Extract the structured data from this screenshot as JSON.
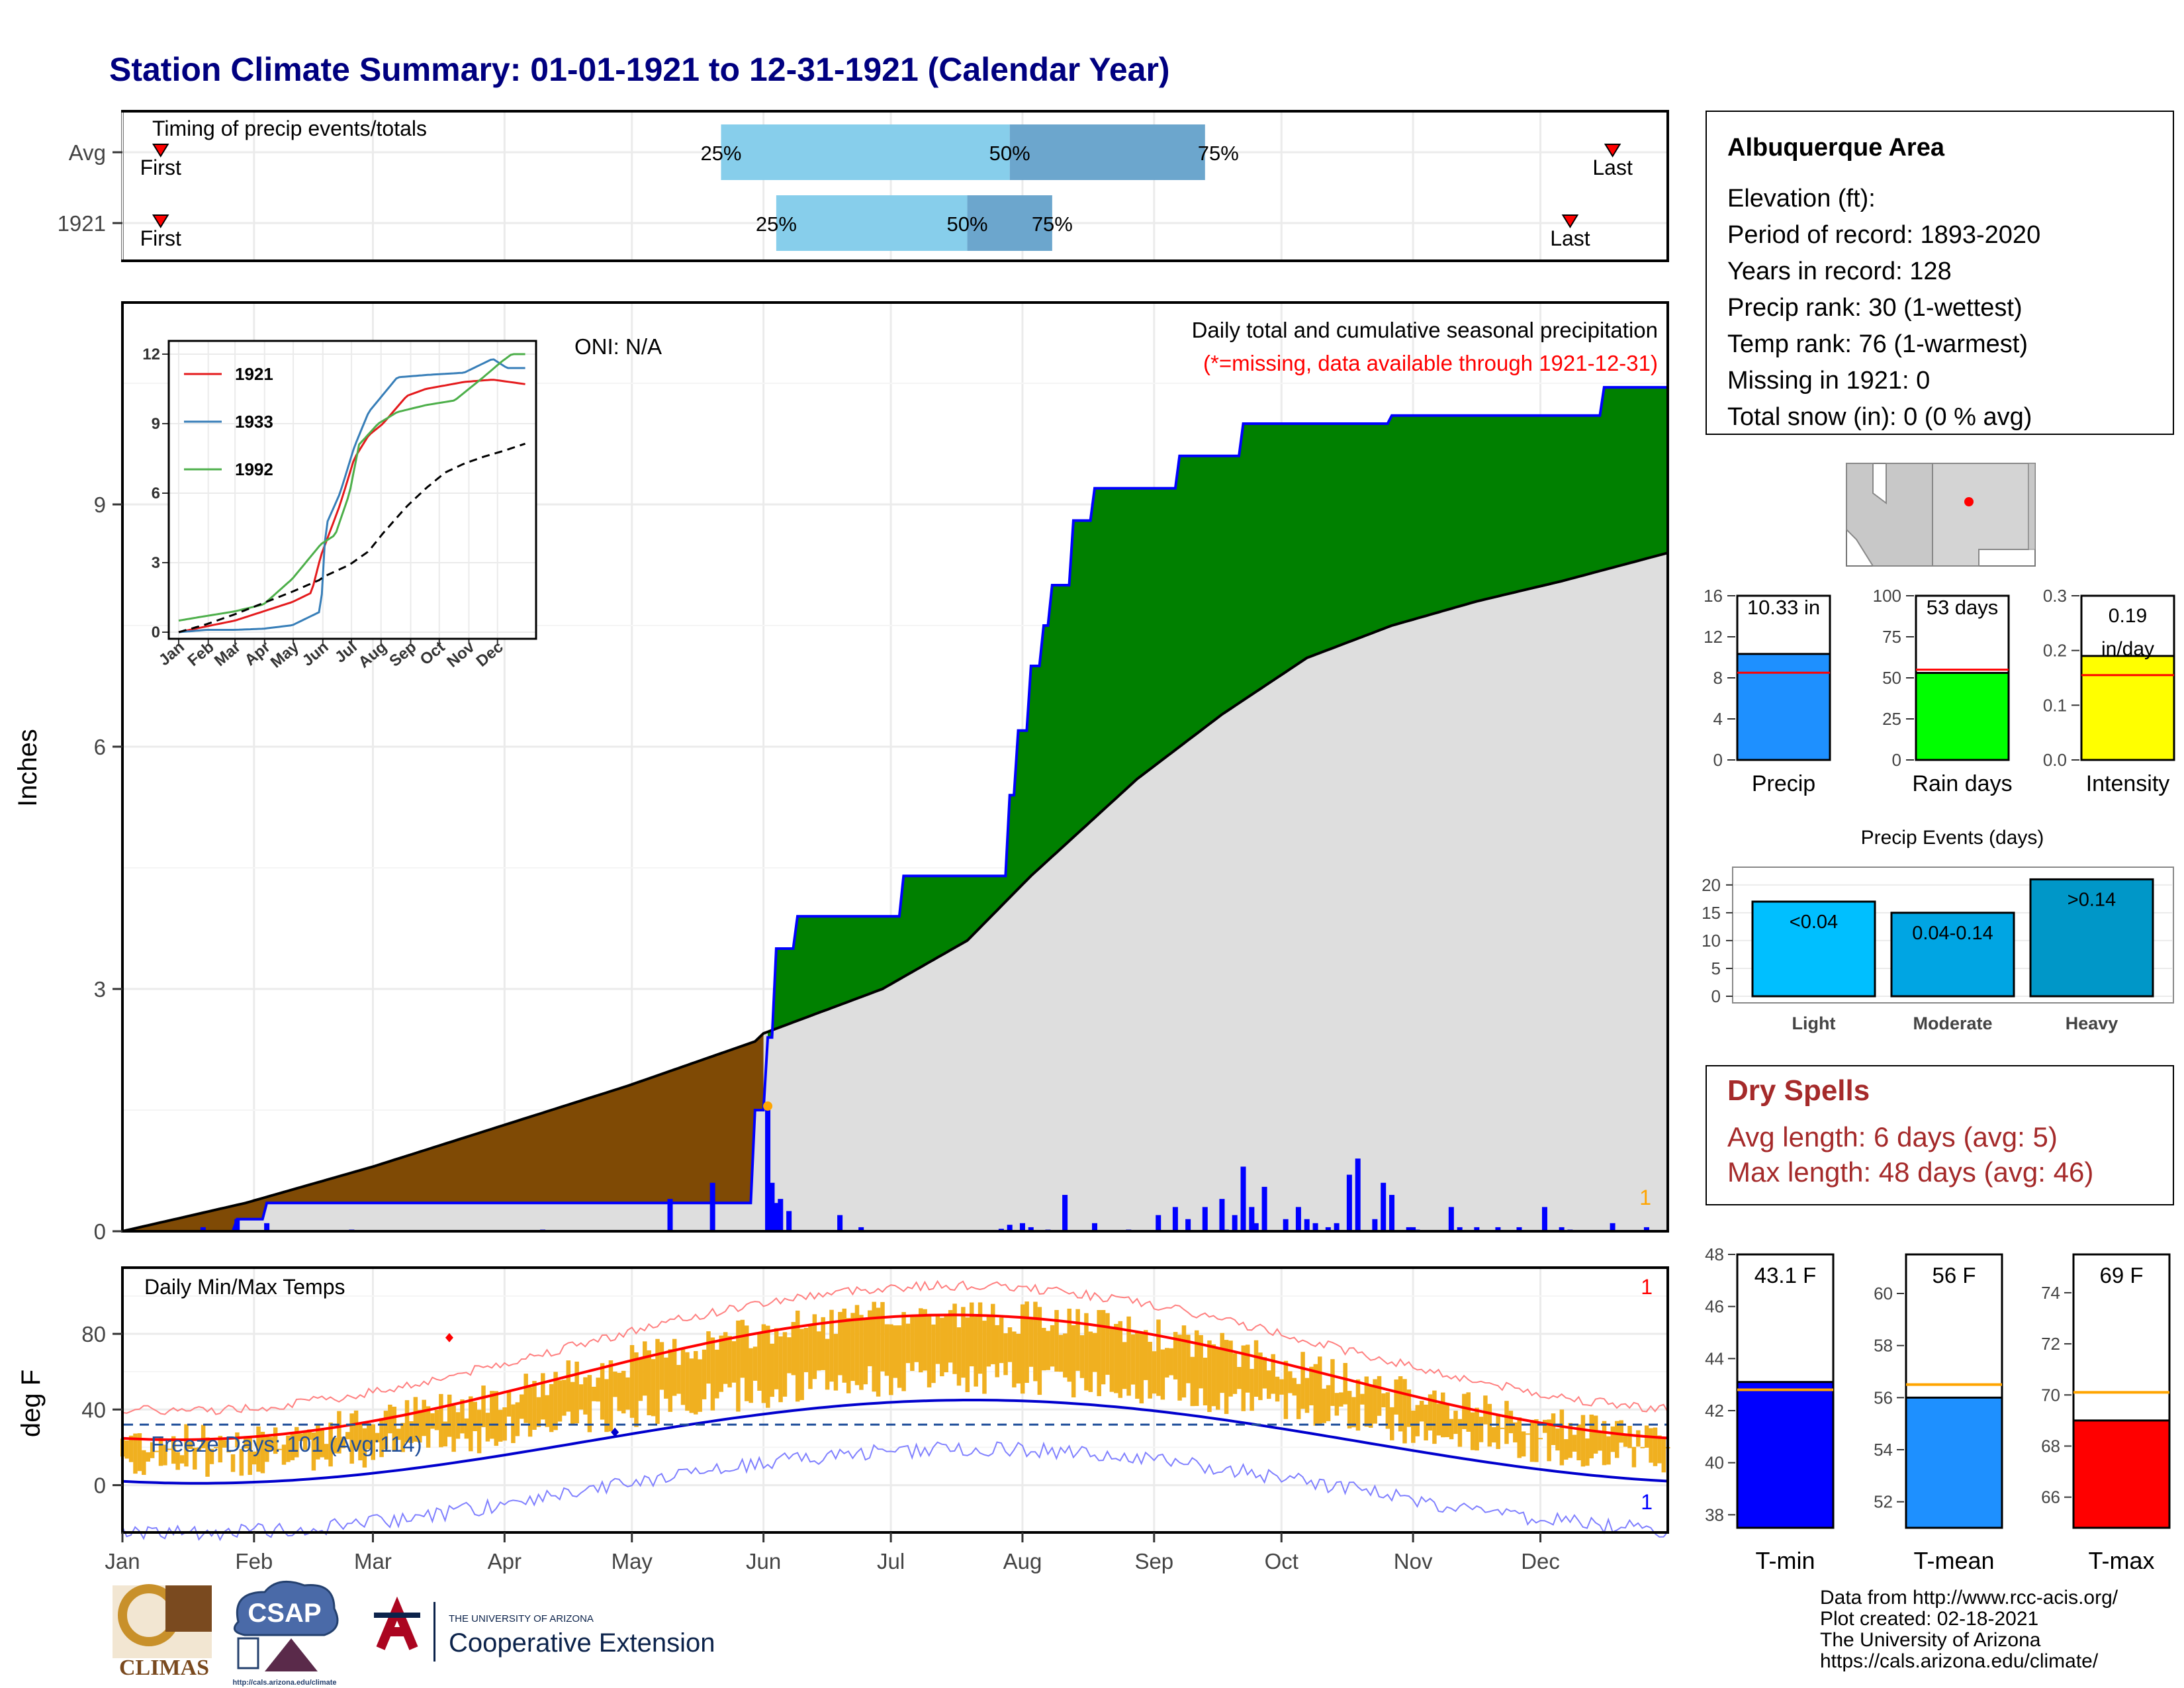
{
  "title": "Station Climate Summary: 01-01-1921 to 12-31-1921 (Calendar Year)",
  "months": [
    "Jan",
    "Feb",
    "Mar",
    "Apr",
    "May",
    "Jun",
    "Jul",
    "Aug",
    "Sep",
    "Oct",
    "Nov",
    "Dec"
  ],
  "timing_panel": {
    "label": "Timing of precip events/totals",
    "rows": [
      {
        "name": "Avg",
        "first_doy": 10,
        "last_doy": 352,
        "q25": 142,
        "q50": 210,
        "q75": 256,
        "first_label": "First",
        "last_label": "Last",
        "p25": "25%",
        "p50": "50%",
        "p75": "75%"
      },
      {
        "name": "1921",
        "first_doy": 10,
        "last_doy": 342,
        "q25": 155,
        "q50": 200,
        "q75": 220,
        "first_label": "First",
        "last_label": "Last",
        "p25": "25%",
        "p50": "50%",
        "p75": "75%"
      }
    ]
  },
  "main_panel": {
    "ylabel": "Inches",
    "yticks": [
      "0",
      "3",
      "6",
      "9"
    ],
    "oni": "ONI: N/A",
    "caption": "Daily total and cumulative seasonal precipitation",
    "missing_note": "(*=missing, data available through 1921-12-31)",
    "missing_count": "1"
  },
  "inset": {
    "yticks": [
      "0",
      "3",
      "6",
      "9",
      "12"
    ],
    "xticks": [
      "Jan",
      "Feb",
      "Mar",
      "Apr",
      "May",
      "Jun",
      "Jul",
      "Aug",
      "Sep",
      "Oct",
      "Nov",
      "Dec"
    ],
    "series": [
      {
        "name": "1921",
        "color": "#e41a1c"
      },
      {
        "name": "1933",
        "color": "#377eb8"
      },
      {
        "name": "1992",
        "color": "#4daf4a"
      }
    ]
  },
  "temp_panel": {
    "ylabel": "deg F",
    "title": "Daily Min/Max Temps",
    "yticks": [
      "0",
      "40",
      "80"
    ],
    "freeze_text": "Freeze Days: 101 (Avg:114)",
    "missing_count": "1",
    "missing_count_low": "1"
  },
  "info_box": {
    "title": "Albuquerque Area",
    "lines": [
      "Elevation (ft):",
      "Period of record: 1893-2020",
      "Years in record: 128",
      "Precip rank: 30 (1-wettest)",
      "Temp rank: 76 (1-warmest)",
      "Missing in 1921: 0",
      "Total snow (in): 0 (0 % avg)"
    ]
  },
  "small_bars": [
    {
      "label": "Precip",
      "value_text": "10.33 in",
      "value": 10.33,
      "avg": 8.5,
      "max": 16,
      "yticks": [
        "0",
        "4",
        "8",
        "12",
        "16"
      ],
      "color": "#1e90ff"
    },
    {
      "label": "Rain days",
      "value_text": "53 days",
      "value": 53,
      "avg": 55,
      "max": 100,
      "yticks": [
        "0",
        "25",
        "50",
        "75",
        "100"
      ],
      "color": "#00ff00"
    },
    {
      "label": "Intensity",
      "value_text": "0.19 in/day",
      "value": 0.19,
      "avg": 0.155,
      "max": 0.3,
      "yticks": [
        "0.0",
        "0.1",
        "0.2",
        "0.3"
      ],
      "color": "#ffff00"
    }
  ],
  "precip_events": {
    "title": "Precip Events (days)",
    "yticks": [
      "0",
      "5",
      "10",
      "15",
      "20"
    ],
    "bars": [
      {
        "cat": "Light",
        "label": "<0.04",
        "value": 17,
        "color": "#00bfff"
      },
      {
        "cat": "Moderate",
        "label": "0.04-0.14",
        "value": 15,
        "color": "#00a5e3"
      },
      {
        "cat": "Heavy",
        "label": ">0.14",
        "value": 21,
        "color": "#0097c8"
      }
    ]
  },
  "dry_spells": {
    "title": "Dry Spells",
    "avg_line": "Avg length: 6 days (avg: 5)",
    "max_line": "Max length: 48 days (avg: 46)"
  },
  "temp_bars": [
    {
      "label": "T-min",
      "value_text": "43.1 F",
      "value": 43.1,
      "avg": 42.8,
      "min": 37.5,
      "max": 48,
      "yticks": [
        "38",
        "40",
        "42",
        "44",
        "46",
        "48"
      ],
      "color": "#0000ff"
    },
    {
      "label": "T-mean",
      "value_text": "56 F",
      "value": 56,
      "avg": 56.5,
      "min": 51,
      "max": 61.5,
      "yticks": [
        "52",
        "54",
        "56",
        "58",
        "60"
      ],
      "color": "#1e90ff"
    },
    {
      "label": "T-max",
      "value_text": "69 F",
      "value": 69,
      "avg": 70.1,
      "min": 64.8,
      "max": 75.5,
      "yticks": [
        "66",
        "68",
        "70",
        "72",
        "74"
      ],
      "color": "#ff0000"
    }
  ],
  "footer": {
    "lines": [
      "Data from http://www.rcc-acis.org/",
      "Plot created: 02-18-2021",
      "The University of Arizona",
      "https://cals.arizona.edu/climate/"
    ],
    "logo_climas": "CLIMAS",
    "logo_csap": "CSAP",
    "logo_csap_url": "http://cals.arizona.edu/climate",
    "logo_ua_small": "THE UNIVERSITY OF ARIZONA",
    "logo_ua_big": "Cooperative Extension"
  },
  "chart_data": [
    {
      "type": "area",
      "title": "Daily total and cumulative seasonal precipitation",
      "ylabel": "Inches",
      "ylim": [
        0,
        11.5
      ],
      "series": [
        {
          "name": "1921 cumulative",
          "x_doy": [
            1,
            28,
            35,
            150,
            153,
            155,
            160,
            185,
            210,
            212,
            215,
            218,
            220,
            225,
            230,
            250,
            265,
            275,
            300,
            310,
            345,
            350,
            365
          ],
          "values": [
            0,
            0.15,
            0.35,
            1.5,
            2.4,
            3.5,
            3.9,
            4.4,
            5.4,
            6.2,
            7.0,
            7.5,
            8.0,
            8.8,
            9.2,
            9.6,
            10.0,
            10.0,
            10.1,
            10.1,
            10.1,
            10.45,
            10.45
          ]
        },
        {
          "name": "Avg cumulative",
          "x_doy": [
            1,
            30,
            60,
            90,
            120,
            150,
            152,
            180,
            200,
            215,
            240,
            260,
            280,
            300,
            320,
            340,
            365
          ],
          "values": [
            0,
            0.35,
            0.8,
            1.3,
            1.8,
            2.35,
            2.45,
            3.0,
            3.6,
            4.4,
            5.6,
            6.4,
            7.1,
            7.5,
            7.8,
            8.05,
            8.4
          ]
        }
      ]
    },
    {
      "type": "bar",
      "title": "Precip",
      "categories": [
        "Precip",
        "Rain days",
        "Intensity"
      ],
      "values": [
        10.33,
        53,
        0.19
      ]
    },
    {
      "type": "bar",
      "title": "Precip Events (days)",
      "categories": [
        "Light",
        "Moderate",
        "Heavy"
      ],
      "values": [
        17,
        15,
        21
      ]
    },
    {
      "type": "bar",
      "categories": [
        "T-min",
        "T-mean",
        "T-max"
      ],
      "values": [
        43.1,
        56,
        69
      ]
    }
  ]
}
